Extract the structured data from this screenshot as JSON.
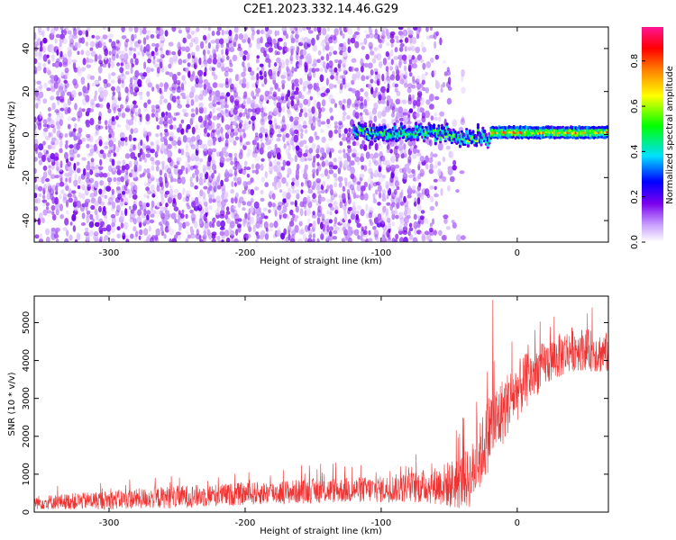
{
  "title": "C2E1.2023.332.14.46.G29",
  "chart_data": [
    {
      "type": "heatmap",
      "xlabel": "Height of straight line (km)",
      "ylabel": "Frequency (Hz)",
      "xlim": [
        -355,
        67
      ],
      "ylim": [
        -50,
        50
      ],
      "x_ticks": [
        -300,
        -200,
        -100,
        0
      ],
      "x_tick_labels": [
        "-300",
        "-200",
        "-100",
        "0"
      ],
      "y_ticks": [
        -40,
        -20,
        0,
        20,
        40
      ],
      "y_tick_labels": [
        "-40",
        "-20",
        "0",
        "20",
        "40"
      ],
      "colorbar": {
        "label": "Normalized spectral amplitude",
        "range": [
          0,
          0.95
        ],
        "ticks": [
          0,
          0.2,
          0.4,
          0.6,
          0.8
        ],
        "tick_labels": [
          "0.0",
          "0.2",
          "0.4",
          "0.6",
          "0.8"
        ],
        "colormap": [
          "#ffffff",
          "#8a2be2",
          "#0000ff",
          "#00ffff",
          "#00ff00",
          "#ffff00",
          "#ff8000",
          "#ff0000",
          "#ff1493"
        ]
      },
      "features": [
        {
          "region": "noise",
          "x_range": [
            -355,
            -40
          ],
          "y_range": [
            -50,
            50
          ],
          "amplitude": 0.1
        },
        {
          "region": "signal",
          "x_range": [
            -120,
            67
          ],
          "center_frequency": 1,
          "width_hz": 3,
          "amplitude": 0.75
        }
      ]
    },
    {
      "type": "line",
      "xlabel": "Height of straight line (km)",
      "ylabel": "SNR (10 * v/v)",
      "xlim": [
        -355,
        67
      ],
      "ylim": [
        0,
        5700
      ],
      "x_ticks": [
        -300,
        -200,
        -100,
        0
      ],
      "x_tick_labels": [
        "-300",
        "-200",
        "-100",
        "0"
      ],
      "y_ticks": [
        0,
        1000,
        2000,
        3000,
        4000,
        5000
      ],
      "y_tick_labels": [
        "0",
        "1000",
        "2000",
        "3000",
        "4000",
        "5000"
      ],
      "series": [
        {
          "color": "#ee3333",
          "x": [
            -355,
            -300,
            -250,
            -200,
            -150,
            -100,
            -80,
            -60,
            -45,
            -35,
            -28,
            -22,
            -19,
            -15,
            -10,
            -5,
            0,
            10,
            20,
            30,
            40,
            50,
            60,
            67
          ],
          "y": [
            250,
            320,
            400,
            480,
            560,
            600,
            650,
            700,
            750,
            900,
            1400,
            2000,
            2300,
            2400,
            2700,
            3000,
            3200,
            3600,
            3900,
            4100,
            4300,
            4300,
            4200,
            4200
          ],
          "spread": [
            180,
            250,
            300,
            300,
            330,
            350,
            400,
            500,
            700,
            800,
            900,
            1000,
            1100,
            1000,
            900,
            800,
            800,
            700,
            600,
            600,
            600,
            550,
            550,
            550
          ],
          "spikes": [
            {
              "x": -18,
              "y": 5600
            },
            {
              "x": -40,
              "y": 2500
            },
            {
              "x": 55,
              "y": 5400
            }
          ]
        }
      ]
    }
  ]
}
